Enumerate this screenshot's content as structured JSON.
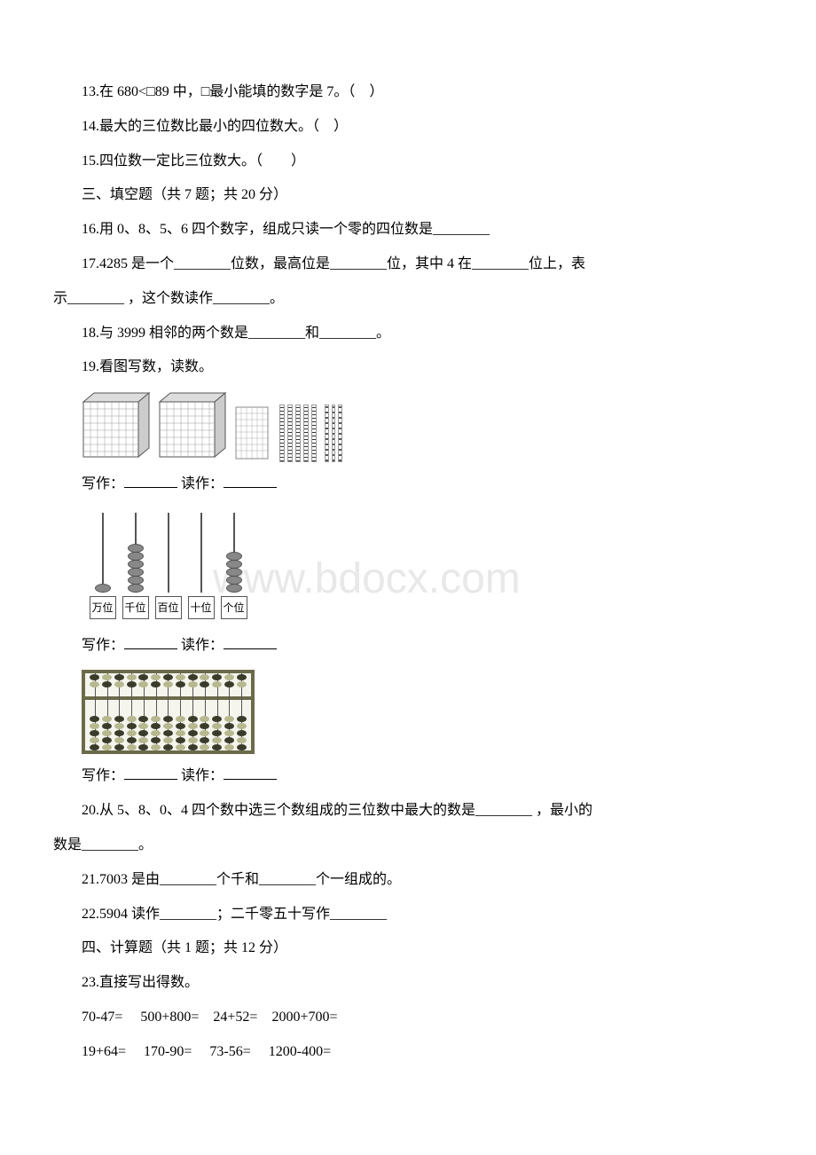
{
  "q13": "13.在 680<□89 中，□最小能填的数字是 7。（　）",
  "q14": "14.最大的三位数比最小的四位数大。（　）",
  "q15": "15.四位数一定比三位数大。（　　）",
  "section3": "三、填空题（共 7 题；共 20 分）",
  "q16": "16.用 0、8、5、6 四个数字，组成只读一个零的四位数是________",
  "q17a": "17.4285 是一个________位数，最高位是________位，其中 4 在________位上，表",
  "q17b": "示________ ，这个数读作________。",
  "q18": "18.与 3999 相邻的两个数是________和________。",
  "q19": "19.看图写数，读数。",
  "write_label": "写作：",
  "read_label": "读作：",
  "places": {
    "wan": "万位",
    "qian": "千位",
    "bai": "百位",
    "shi": "十位",
    "ge": "个位"
  },
  "q20a": "20.从 5、8、0、4 四个数中选三个数组成的三位数中最大的数是________ ，最小的",
  "q20b": "数是________。",
  "q21": "21.7003 是由________个千和________个一组成的。",
  "q22": "22.5904 读作________；二千零五十写作________",
  "section4": "四、计算题（共 1 题；共 12 分）",
  "q23": "23.直接写出得数。",
  "calc1": "70-47= 　500+800=　24+52=　2000+700=",
  "calc2": "19+64= 　170-90= 　73-56= 　1200-400=",
  "watermark": "www.bdocx.com",
  "abacus2": {
    "wan_beads": 1,
    "qian_beads": 6,
    "bai_beads": 0,
    "shi_beads": 0,
    "ge_beads": 5
  },
  "suanpan_cols": 13,
  "colors": {
    "text": "#000000",
    "bg": "#ffffff",
    "watermark": "#e8e8e8",
    "suanpan_frame": "#6b6b4b",
    "dark_bead": "#3b3b2b",
    "light_bead": "#b8b890"
  }
}
